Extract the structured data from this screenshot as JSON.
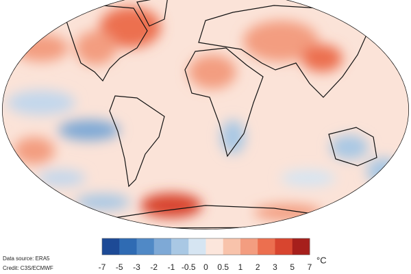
{
  "source": "Data source: ERA5",
  "credit": "Credit: C3S/ECMWF",
  "legend": {
    "unit": "°C",
    "ticks": [
      -7,
      -5,
      -3,
      -2,
      -1,
      -0.5,
      0,
      0.5,
      1,
      2,
      3,
      5,
      7
    ],
    "colors": [
      "#1d4a96",
      "#2f6bb3",
      "#5089c6",
      "#7ea9d6",
      "#a9c8e4",
      "#d6e5f2",
      "#fce6dc",
      "#f8c3ab",
      "#f39d80",
      "#ec6f4f",
      "#d8452f",
      "#a61f1c"
    ]
  }
}
